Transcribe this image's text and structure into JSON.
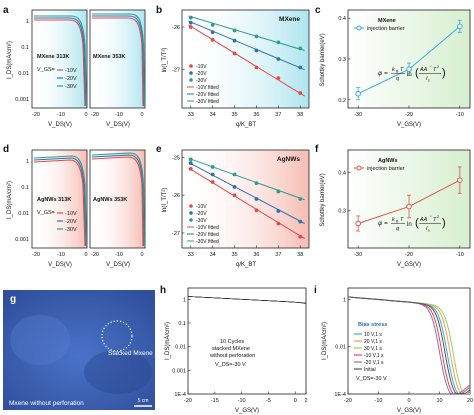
{
  "panels": {
    "a": {
      "letter": "a",
      "subplot_labels": [
        "MXene 313K",
        "MXene 353K"
      ],
      "ylabel": "I_DS(mA/cm²)",
      "xlabel": "V_DS(V)",
      "yticks": [
        "1",
        "0.1",
        "0.01",
        "0.001"
      ],
      "xticks_left": [
        "-20",
        "-10",
        "0"
      ],
      "xticks_right": [
        "-20",
        "-10",
        "0"
      ]
    },
    "d": {
      "letter": "d",
      "subplot_labels": [
        "AgNWs 313K",
        "AgNWs 353K"
      ],
      "ylabel": "I_DS(mA/cm²)",
      "xlabel": "V_DS(V)",
      "yticks": [
        "1",
        "0.1",
        "0.01",
        "0.001"
      ],
      "xticks_left": [
        "-20",
        "-10",
        "0"
      ],
      "xticks_right": [
        "-20",
        "-10",
        "0"
      ]
    },
    "b": {
      "letter": "b",
      "title": "MXene",
      "ylabel": "ln(I_T/T²)",
      "xlabel": "q/K_BT"
    },
    "e": {
      "letter": "e",
      "title": "AgNWs",
      "ylabel": "ln(I_T/T²)",
      "xlabel": "q/K_BT"
    },
    "c": {
      "letter": "c",
      "legend_title": "MXene",
      "legend_entry": "injection barrier",
      "ylabel": "Schottky barrier(eV)",
      "xlabel": "V_GS(V)",
      "formula": "φ = (k_B T / q) ln(AA*T² / I_s)"
    },
    "f": {
      "letter": "f",
      "legend_title": "AgNWs",
      "legend_entry": "injection barrier",
      "ylabel": "Schottky barrier(eV)",
      "xlabel": "V_GS(V)",
      "formula": "φ = (k_B T / q) ln(AA*T² / I_s)"
    },
    "g": {
      "letter": "g",
      "label_stacked": "Stacked Mxene",
      "label_bottom": "Mxene without perforation",
      "scalebar": "5 cm"
    },
    "h": {
      "letter": "h",
      "annotation_lines": [
        "10 Cycles",
        "stacked MXene",
        "without perforation",
        "V_DS=-30 V"
      ],
      "ylabel": "I_DS(mA/cm²)",
      "xlabel": "V_GS(V)"
    },
    "i": {
      "letter": "i",
      "legend_title": "Bias stress",
      "legend_entries": [
        "10 V,1 s",
        "20 V,1 s",
        "30 V,1 s",
        "-10 V,1 s",
        "-20 V,1 s",
        "Initial"
      ],
      "vds_note": "V_DS=-30 V",
      "ylabel": "I_DS(mA/cm²)",
      "xlabel": "V_GS(V)"
    }
  },
  "legend_vgs": {
    "prefix": "V_GS=",
    "items": [
      "-10V",
      "-20V",
      "-30V"
    ]
  },
  "legend_arrhenius": [
    "-10V",
    "-20V",
    "-30V",
    "-10V fitted",
    "-20V fitted",
    "-30V fitted"
  ],
  "colors": {
    "v10": "#e8474a",
    "v20": "#2f6fb5",
    "v30": "#2a9d8f",
    "mx_fill": "#8fd6e8",
    "ag_fill": "#ef9a90",
    "barrier_mx": "#3ba9dc",
    "barrier_ag": "#e0554a"
  },
  "chart_data": [
    {
      "id": "a",
      "type": "line",
      "subplot_labels": [
        "MXene 313K",
        "MXene 353K"
      ],
      "xlabel": "V_DS(V)",
      "ylabel": "I_DS(mA/cm²)",
      "yscale": "log",
      "ylim": [
        0.001,
        1.5
      ],
      "xlim": [
        -25,
        0
      ],
      "series": [
        {
          "name": "-10V"
        },
        {
          "name": "-20V"
        },
        {
          "name": "-30V"
        }
      ],
      "legend": [
        "-10V",
        "-20V",
        "-30V"
      ]
    },
    {
      "id": "b",
      "type": "scatter",
      "title": "MXene",
      "xlabel": "q/K_BT",
      "ylabel": "ln(I_T/T²)",
      "xlim": [
        32.6,
        38.4
      ],
      "ylim": [
        -27.9,
        -25.6
      ],
      "x": [
        33.0,
        34.0,
        35.0,
        36.0,
        37.0,
        38.0
      ],
      "yticks": [
        -26,
        -27
      ],
      "xticks": [
        33,
        34,
        35,
        36,
        37,
        38
      ],
      "series": [
        {
          "name": "-10V",
          "values": [
            -26.0,
            -26.3,
            -26.62,
            -26.95,
            -27.2,
            -27.55
          ]
        },
        {
          "name": "-20V",
          "values": [
            -25.9,
            -26.12,
            -26.32,
            -26.55,
            -26.75,
            -26.95
          ]
        },
        {
          "name": "-30V",
          "values": [
            -25.78,
            -25.95,
            -26.08,
            -26.22,
            -26.36,
            -26.5
          ]
        }
      ],
      "fits": [
        {
          "name": "-10V fitted",
          "x": [
            32.9,
            38.2
          ],
          "y": [
            -25.95,
            -27.62
          ]
        },
        {
          "name": "-20V fitted",
          "x": [
            32.9,
            38.2
          ],
          "y": [
            -25.86,
            -27.0
          ]
        },
        {
          "name": "-30V fitted",
          "x": [
            32.9,
            38.2
          ],
          "y": [
            -25.74,
            -26.55
          ]
        }
      ]
    },
    {
      "id": "c",
      "type": "line",
      "xlabel": "V_GS(V)",
      "ylabel": "Schottky barrier(eV)",
      "x": [
        -30,
        -20,
        -10
      ],
      "xlim": [
        -32,
        -8
      ],
      "ylim": [
        0.18,
        0.42
      ],
      "yticks": [
        0.2,
        0.3,
        0.4
      ],
      "xticks": [
        -30,
        -20,
        -10
      ],
      "series": [
        {
          "name": "injection barrier",
          "values": [
            0.215,
            0.275,
            0.38
          ],
          "errors": [
            0.015,
            0.015,
            0.015
          ]
        }
      ]
    },
    {
      "id": "d",
      "type": "line",
      "subplot_labels": [
        "AgNWs 313K",
        "AgNWs 353K"
      ],
      "xlabel": "V_DS(V)",
      "ylabel": "I_DS(mA/cm²)",
      "yscale": "log",
      "ylim": [
        0.001,
        1.5
      ],
      "xlim": [
        -25,
        0
      ],
      "series": [
        {
          "name": "-10V"
        },
        {
          "name": "-20V"
        },
        {
          "name": "-30V"
        }
      ],
      "legend": [
        "-10V",
        "-20V",
        "-30V"
      ]
    },
    {
      "id": "e",
      "type": "scatter",
      "title": "AgNWs",
      "xlabel": "q/K_BT",
      "ylabel": "ln(I_T/T²)",
      "xlim": [
        32.6,
        38.4
      ],
      "ylim": [
        -27.4,
        -24.8
      ],
      "x": [
        33.0,
        34.0,
        35.0,
        36.0,
        37.0,
        38.0
      ],
      "yticks": [
        -25,
        -26,
        -27
      ],
      "xticks": [
        33,
        34,
        35,
        36,
        37,
        38
      ],
      "series": [
        {
          "name": "-10V",
          "values": [
            -25.3,
            -25.65,
            -26.0,
            -26.4,
            -26.75,
            -27.1
          ]
        },
        {
          "name": "-20V",
          "values": [
            -25.15,
            -25.45,
            -25.78,
            -26.1,
            -26.42,
            -26.7
          ]
        },
        {
          "name": "-30V",
          "values": [
            -25.05,
            -25.25,
            -25.45,
            -25.68,
            -25.9,
            -26.1
          ]
        }
      ],
      "fits": [
        {
          "name": "-10V fitted",
          "x": [
            32.9,
            38.2
          ],
          "y": [
            -25.28,
            -27.15
          ]
        },
        {
          "name": "-20V fitted",
          "x": [
            32.9,
            38.2
          ],
          "y": [
            -25.13,
            -26.75
          ]
        },
        {
          "name": "-30V fitted",
          "x": [
            32.9,
            38.2
          ],
          "y": [
            -25.02,
            -26.12
          ]
        }
      ]
    },
    {
      "id": "f",
      "type": "line",
      "xlabel": "V_GS(V)",
      "ylabel": "Schottky barrier(eV)",
      "x": [
        -30,
        -20,
        -10
      ],
      "xlim": [
        -32,
        -8
      ],
      "ylim": [
        0.2,
        0.46
      ],
      "yticks": [
        0.3,
        0.4
      ],
      "xticks": [
        -30,
        -20,
        -10
      ],
      "series": [
        {
          "name": "injection barrier",
          "values": [
            0.265,
            0.31,
            0.38
          ],
          "errors": [
            0.02,
            0.03,
            0.035
          ]
        }
      ]
    },
    {
      "id": "h",
      "type": "line",
      "xlabel": "V_GS(V)",
      "ylabel": "I_DS(mA/cm²)",
      "yscale": "log",
      "xlim": [
        -20,
        2
      ],
      "ylim": [
        0.0001,
        3
      ],
      "yticks": [
        "1",
        "0.1",
        "0.01",
        "0.001",
        "1E-4"
      ],
      "xticks": [
        -20,
        -15,
        -10,
        -5,
        0,
        2
      ]
    },
    {
      "id": "i",
      "type": "line",
      "xlabel": "V_GS(V)",
      "ylabel": "I_DS(mA/cm²)",
      "yscale": "log",
      "xlim": [
        -20,
        20
      ],
      "ylim": [
        0.0001,
        3
      ],
      "yticks": [
        "1",
        "0.01",
        "1E-4"
      ],
      "xticks": [
        -20,
        -10,
        0,
        10,
        20
      ],
      "series": [
        {
          "name": "10 V,1 s"
        },
        {
          "name": "20 V,1 s"
        },
        {
          "name": "30 V,1 s"
        },
        {
          "name": "-10 V,1 s"
        },
        {
          "name": "-20 V,1 s"
        },
        {
          "name": "Initial"
        }
      ]
    }
  ]
}
